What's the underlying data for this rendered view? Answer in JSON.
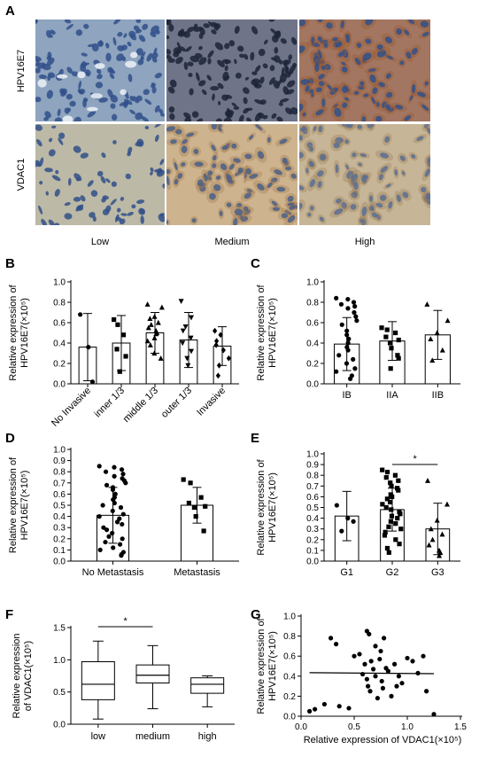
{
  "panel_a": {
    "label": "A",
    "row_labels": [
      "HPV16E7",
      "VDAC1"
    ],
    "col_labels": [
      "Low",
      "Medium",
      "High"
    ],
    "colors": {
      "hpv_low": "#8ea4bf",
      "hpv_medium": "#6f7488",
      "hpv_high": "#a27660",
      "vdac_low": "#bcb9a6",
      "vdac_medium": "#cdb48f",
      "vdac_high": "#c6b596",
      "nucleus_blue": "#31508a",
      "nucleus_dark": "#1d2438",
      "cytoplasm_brown": "#9a5a2e"
    }
  },
  "chart_data": [
    {
      "panel": "B",
      "type": "bar",
      "ylabel_lines": [
        "Relative expression of",
        "HPV16E7(×10⁵)"
      ],
      "yticks": [
        "0.0",
        "0.2",
        "0.4",
        "0.6",
        "0.8",
        "1.0"
      ],
      "ylim": [
        0,
        1.0
      ],
      "categories": [
        "No Invasive",
        "inner 1/3",
        "middle 1/3",
        "outer 1/3",
        "Invasive"
      ],
      "values": [
        0.36,
        0.4,
        0.5,
        0.43,
        0.37
      ],
      "errors": [
        0.33,
        0.27,
        0.2,
        0.27,
        0.19
      ],
      "markers": [
        "circle",
        "square",
        "triangle",
        "triangle-down",
        "diamond"
      ],
      "points": [
        [
          0.68,
          0.36,
          0.02
        ],
        [
          0.63,
          0.58,
          0.48,
          0.34,
          0.27,
          0.12
        ],
        [
          0.78,
          0.75,
          0.66,
          0.64,
          0.6,
          0.58,
          0.55,
          0.52,
          0.5,
          0.49,
          0.45,
          0.42,
          0.38,
          0.3,
          0.25
        ],
        [
          0.81,
          0.65,
          0.56,
          0.52,
          0.45,
          0.4,
          0.32,
          0.25,
          0.18
        ],
        [
          0.52,
          0.48,
          0.42,
          0.38,
          0.33,
          0.25,
          0.18,
          0.08
        ]
      ]
    },
    {
      "panel": "C",
      "type": "bar",
      "ylabel_lines": [
        "Relative expression of",
        "HPV16E7(×10⁵)"
      ],
      "yticks": [
        "0.0",
        "0.2",
        "0.4",
        "0.6",
        "0.8",
        "1.0"
      ],
      "ylim": [
        0,
        1.0
      ],
      "categories": [
        "IB",
        "IIA",
        "IIB"
      ],
      "values": [
        0.39,
        0.42,
        0.48
      ],
      "errors": [
        0.26,
        0.19,
        0.24
      ],
      "markers": [
        "circle",
        "square",
        "triangle"
      ],
      "points": [
        [
          0.84,
          0.83,
          0.8,
          0.78,
          0.76,
          0.74,
          0.7,
          0.66,
          0.62,
          0.58,
          0.52,
          0.48,
          0.44,
          0.4,
          0.36,
          0.33,
          0.28,
          0.24,
          0.2,
          0.15,
          0.12,
          0.08,
          0.05
        ],
        [
          0.55,
          0.53,
          0.5,
          0.46,
          0.43,
          0.4,
          0.35,
          0.28,
          0.25,
          0.15
        ],
        [
          0.78,
          0.62,
          0.5,
          0.44,
          0.33,
          0.23
        ]
      ]
    },
    {
      "panel": "D",
      "type": "bar",
      "ylabel_lines": [
        "Relative expression of",
        "HPV16E7(×10⁵)"
      ],
      "yticks": [
        "0.0",
        "0.1",
        "0.2",
        "0.3",
        "0.4",
        "0.5",
        "0.6",
        "0.7",
        "0.8",
        "0.9",
        "1.0"
      ],
      "ylim": [
        0,
        1.0
      ],
      "categories": [
        "No Metastasis",
        "Metastasis"
      ],
      "values": [
        0.41,
        0.5
      ],
      "errors": [
        0.25,
        0.16
      ],
      "markers": [
        "circle",
        "square"
      ],
      "points": [
        [
          0.85,
          0.84,
          0.82,
          0.8,
          0.78,
          0.76,
          0.74,
          0.72,
          0.7,
          0.68,
          0.66,
          0.64,
          0.6,
          0.57,
          0.55,
          0.52,
          0.5,
          0.48,
          0.45,
          0.42,
          0.4,
          0.38,
          0.35,
          0.33,
          0.3,
          0.28,
          0.25,
          0.22,
          0.2,
          0.17,
          0.15,
          0.12,
          0.1,
          0.08,
          0.06,
          0.05
        ],
        [
          0.73,
          0.7,
          0.57,
          0.52,
          0.49,
          0.48,
          0.4,
          0.27
        ]
      ]
    },
    {
      "panel": "E",
      "type": "bar",
      "ylabel_lines": [
        "Relative expression of",
        "HPV16E7(×10⁵)"
      ],
      "yticks": [
        "0.0",
        "0.1",
        "0.2",
        "0.3",
        "0.4",
        "0.5",
        "0.6",
        "0.7",
        "0.8",
        "0.9",
        "1.0"
      ],
      "ylim": [
        0,
        1.0
      ],
      "categories": [
        "G1",
        "G2",
        "G3"
      ],
      "values": [
        0.42,
        0.48,
        0.3
      ],
      "errors": [
        0.23,
        0.2,
        0.24
      ],
      "markers": [
        "circle",
        "square",
        "triangle"
      ],
      "points": [
        [
          0.52,
          0.4,
          0.37,
          0.28
        ],
        [
          0.85,
          0.83,
          0.8,
          0.78,
          0.75,
          0.73,
          0.7,
          0.68,
          0.66,
          0.62,
          0.6,
          0.58,
          0.55,
          0.53,
          0.5,
          0.48,
          0.46,
          0.44,
          0.42,
          0.4,
          0.37,
          0.35,
          0.32,
          0.3,
          0.27,
          0.24,
          0.2,
          0.16,
          0.12,
          0.08
        ],
        [
          0.75,
          0.53,
          0.38,
          0.3,
          0.25,
          0.2,
          0.15,
          0.1,
          0.08,
          0.05
        ]
      ],
      "significance": {
        "from": 1,
        "to": 2,
        "label": "*"
      }
    },
    {
      "panel": "F",
      "type": "box",
      "ylabel_lines": [
        "Relative expression",
        "of VDAC1(×10⁵)"
      ],
      "yticks": [
        "0.0",
        "0.5",
        "1.0",
        "1.5"
      ],
      "ylim": [
        0,
        1.5
      ],
      "categories": [
        "low",
        "medium",
        "high"
      ],
      "boxes": [
        {
          "min": 0.08,
          "q1": 0.38,
          "median": 0.62,
          "q3": 0.97,
          "max": 1.29
        },
        {
          "min": 0.24,
          "q1": 0.64,
          "median": 0.76,
          "q3": 0.92,
          "max": 1.22
        },
        {
          "min": 0.27,
          "q1": 0.48,
          "median": 0.62,
          "q3": 0.72,
          "max": 0.75
        }
      ],
      "significance": {
        "from": 0,
        "to": 1,
        "label": "*"
      }
    },
    {
      "panel": "G",
      "type": "scatter",
      "xlabel": "Relative expression of VDAC1(×10⁵)",
      "ylabel_lines": [
        "Relative expression of",
        "HPV16E7(×10⁵)"
      ],
      "xticks": [
        "0.0",
        "0.5",
        "1.0",
        "1.5"
      ],
      "xlim": [
        0,
        1.5
      ],
      "yticks": [
        "0.0",
        "0.2",
        "0.4",
        "0.6",
        "0.8",
        "1.0"
      ],
      "ylim": [
        0,
        1.0
      ],
      "fit_line": {
        "x": [
          0.08,
          1.25
        ],
        "y": [
          0.435,
          0.425
        ]
      },
      "x": [
        0.08,
        0.13,
        0.22,
        0.28,
        0.33,
        0.36,
        0.45,
        0.5,
        0.55,
        0.58,
        0.6,
        0.62,
        0.62,
        0.63,
        0.64,
        0.65,
        0.66,
        0.68,
        0.7,
        0.72,
        0.74,
        0.75,
        0.76,
        0.78,
        0.8,
        0.82,
        0.85,
        0.88,
        0.9,
        0.95,
        1.0,
        1.05,
        1.1,
        1.15,
        1.25,
        0.7,
        0.77,
        0.92,
        1.18
      ],
      "y": [
        0.05,
        0.07,
        0.12,
        0.78,
        0.72,
        0.1,
        0.08,
        0.6,
        0.62,
        0.42,
        0.52,
        0.85,
        0.37,
        0.3,
        0.82,
        0.25,
        0.55,
        0.47,
        0.4,
        0.18,
        0.57,
        0.65,
        0.35,
        0.78,
        0.48,
        0.45,
        0.2,
        0.52,
        0.3,
        0.33,
        0.58,
        0.55,
        0.43,
        0.6,
        0.02,
        0.7,
        0.28,
        0.4,
        0.25
      ]
    }
  ]
}
